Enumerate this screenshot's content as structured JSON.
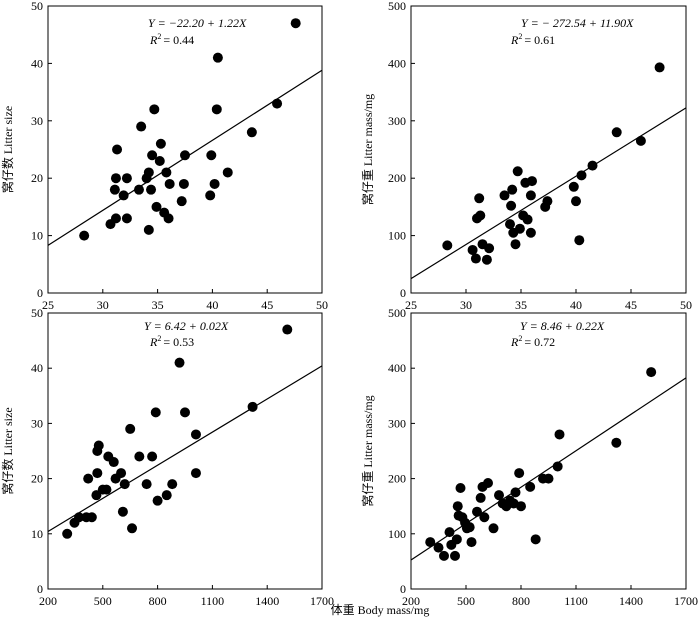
{
  "figure": {
    "shared_xlabel": "体重 Body mass/mg"
  },
  "chart_data": [
    {
      "type": "scatter",
      "xlabel": "",
      "ylabel": "窝仔数 Litter size",
      "xlim": [
        25,
        50
      ],
      "ylim": [
        0,
        50
      ],
      "xticks": [
        25,
        30,
        35,
        40,
        45,
        50
      ],
      "yticks": [
        0,
        10,
        20,
        30,
        40,
        50
      ],
      "equation": "Y = −22.20 + 1.22X",
      "r2_label": "R",
      "r2_value": "= 0.44",
      "regression": {
        "intercept": -22.2,
        "slope": 1.22
      },
      "points": [
        [
          28.3,
          10
        ],
        [
          30.7,
          12
        ],
        [
          31.2,
          13
        ],
        [
          31.1,
          18
        ],
        [
          31.2,
          20
        ],
        [
          31.3,
          25
        ],
        [
          31.9,
          17
        ],
        [
          32.2,
          20
        ],
        [
          32.2,
          13
        ],
        [
          33.3,
          18
        ],
        [
          33.5,
          29
        ],
        [
          34.0,
          20
        ],
        [
          34.2,
          21
        ],
        [
          34.2,
          11
        ],
        [
          34.4,
          18
        ],
        [
          34.5,
          24
        ],
        [
          34.7,
          32
        ],
        [
          34.9,
          15
        ],
        [
          35.2,
          23
        ],
        [
          35.3,
          26
        ],
        [
          35.6,
          14
        ],
        [
          35.8,
          21
        ],
        [
          36.0,
          13
        ],
        [
          36.1,
          19
        ],
        [
          37.2,
          16
        ],
        [
          37.4,
          19
        ],
        [
          37.5,
          24
        ],
        [
          39.8,
          17
        ],
        [
          39.9,
          24
        ],
        [
          40.2,
          19
        ],
        [
          40.4,
          32
        ],
        [
          40.5,
          41
        ],
        [
          41.4,
          21
        ],
        [
          43.6,
          28
        ],
        [
          45.9,
          33
        ],
        [
          47.6,
          47
        ]
      ]
    },
    {
      "type": "scatter",
      "xlabel": "",
      "ylabel": "窝仔重 Litter mass/mg",
      "xlim": [
        25,
        50
      ],
      "ylim": [
        0,
        500
      ],
      "xticks": [
        25,
        30,
        35,
        40,
        45,
        50
      ],
      "yticks": [
        0,
        100,
        200,
        300,
        400,
        500
      ],
      "equation": "Y = − 272.54 + 11.90X",
      "r2_label": "R",
      "r2_value": "= 0.61",
      "regression": {
        "intercept": -272.54,
        "slope": 11.9
      },
      "points": [
        [
          28.3,
          83
        ],
        [
          30.6,
          75
        ],
        [
          30.9,
          60
        ],
        [
          31.0,
          130
        ],
        [
          31.2,
          165
        ],
        [
          31.3,
          135
        ],
        [
          31.5,
          85
        ],
        [
          31.9,
          58
        ],
        [
          32.1,
          78
        ],
        [
          33.5,
          170
        ],
        [
          34.0,
          120
        ],
        [
          34.1,
          152
        ],
        [
          34.2,
          180
        ],
        [
          34.3,
          105
        ],
        [
          34.5,
          85
        ],
        [
          34.7,
          212
        ],
        [
          34.9,
          112
        ],
        [
          35.2,
          135
        ],
        [
          35.4,
          192
        ],
        [
          35.6,
          128
        ],
        [
          35.9,
          170
        ],
        [
          35.9,
          105
        ],
        [
          36.0,
          195
        ],
        [
          37.2,
          150
        ],
        [
          37.4,
          160
        ],
        [
          39.8,
          185
        ],
        [
          40.0,
          160
        ],
        [
          40.3,
          92
        ],
        [
          40.5,
          205
        ],
        [
          41.5,
          222
        ],
        [
          43.7,
          280
        ],
        [
          45.9,
          265
        ],
        [
          47.6,
          393
        ]
      ]
    },
    {
      "type": "scatter",
      "xlabel": "",
      "ylabel": "窝仔数 Litter size",
      "xlim": [
        200,
        1700
      ],
      "ylim": [
        0,
        50
      ],
      "xticks": [
        200,
        500,
        800,
        1100,
        1400,
        1700
      ],
      "yticks": [
        0,
        10,
        20,
        30,
        40,
        50
      ],
      "equation": "Y = 6.42 + 0.02X",
      "r2_label": "R",
      "r2_value": "= 0.53",
      "regression": {
        "intercept": 6.42,
        "slope": 0.02
      },
      "points": [
        [
          305,
          10
        ],
        [
          345,
          12
        ],
        [
          370,
          13
        ],
        [
          410,
          13
        ],
        [
          420,
          20
        ],
        [
          440,
          13
        ],
        [
          465,
          17
        ],
        [
          470,
          21
        ],
        [
          470,
          25
        ],
        [
          478,
          26
        ],
        [
          500,
          18
        ],
        [
          520,
          18
        ],
        [
          530,
          24
        ],
        [
          560,
          23
        ],
        [
          570,
          20
        ],
        [
          600,
          21
        ],
        [
          610,
          14
        ],
        [
          620,
          19
        ],
        [
          650,
          29
        ],
        [
          660,
          11
        ],
        [
          700,
          24
        ],
        [
          740,
          19
        ],
        [
          770,
          24
        ],
        [
          790,
          32
        ],
        [
          800,
          16
        ],
        [
          850,
          17
        ],
        [
          880,
          19
        ],
        [
          920,
          41
        ],
        [
          950,
          32
        ],
        [
          1010,
          21
        ],
        [
          1010,
          28
        ],
        [
          1320,
          33
        ],
        [
          1510,
          47
        ]
      ]
    },
    {
      "type": "scatter",
      "xlabel": "",
      "ylabel": "窝仔重 Litter mass/mg",
      "xlim": [
        200,
        1700
      ],
      "ylim": [
        0,
        500
      ],
      "xticks": [
        200,
        500,
        800,
        1100,
        1400,
        1700
      ],
      "yticks": [
        0,
        100,
        200,
        300,
        400,
        500
      ],
      "equation": "Y = 8.46 + 0.22X",
      "r2_label": "R",
      "r2_value": "= 0.72",
      "regression": {
        "intercept": 8.46,
        "slope": 0.22
      },
      "points": [
        [
          305,
          85
        ],
        [
          350,
          75
        ],
        [
          380,
          60
        ],
        [
          410,
          103
        ],
        [
          420,
          80
        ],
        [
          440,
          60
        ],
        [
          450,
          90
        ],
        [
          455,
          150
        ],
        [
          460,
          133
        ],
        [
          470,
          183
        ],
        [
          480,
          130
        ],
        [
          495,
          120
        ],
        [
          505,
          110
        ],
        [
          520,
          112
        ],
        [
          530,
          85
        ],
        [
          560,
          140
        ],
        [
          580,
          165
        ],
        [
          590,
          185
        ],
        [
          600,
          130
        ],
        [
          620,
          192
        ],
        [
          650,
          110
        ],
        [
          680,
          170
        ],
        [
          700,
          155
        ],
        [
          720,
          150
        ],
        [
          740,
          160
        ],
        [
          760,
          155
        ],
        [
          770,
          175
        ],
        [
          790,
          210
        ],
        [
          800,
          150
        ],
        [
          850,
          185
        ],
        [
          880,
          90
        ],
        [
          920,
          200
        ],
        [
          950,
          200
        ],
        [
          1000,
          222
        ],
        [
          1010,
          280
        ],
        [
          1320,
          265
        ],
        [
          1510,
          393
        ]
      ]
    }
  ]
}
